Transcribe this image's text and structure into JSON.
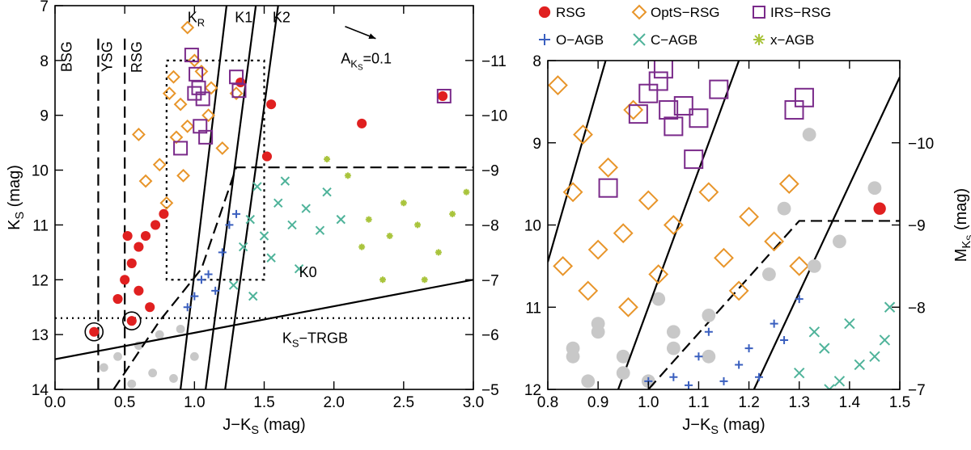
{
  "colors": {
    "rsg": "#e02020",
    "opts": "#e8952a",
    "irs": "#7a2a8a",
    "oagb": "#3a5fbf",
    "cagb": "#4fb39a",
    "xagb": "#a9c43c",
    "grey": "#c8c8c8",
    "dark": "#000000"
  },
  "chart_data": [
    {
      "panel": "left",
      "type": "scatter",
      "xlabel": "J−K",
      "xlabel_sub": "S",
      "xlabel_unit": " (mag)",
      "ylabel": "K",
      "ylabel_sub": "S",
      "ylabel_unit": " (mag)",
      "xlim": [
        0.0,
        3.0
      ],
      "ylim": [
        14,
        7
      ],
      "x_ticks": [
        "0.0",
        "0.5",
        "1.0",
        "1.5",
        "2.0",
        "2.5",
        "3.0"
      ],
      "x_tick_values": [
        0.0,
        0.5,
        1.0,
        1.5,
        2.0,
        2.5,
        3.0
      ],
      "y_ticks": [
        "7",
        "8",
        "9",
        "10",
        "11",
        "12",
        "13",
        "14"
      ],
      "y_tick_values": [
        7,
        8,
        9,
        10,
        11,
        12,
        13,
        14
      ],
      "right_axis_ticks": [
        "−11",
        "−10",
        "−9",
        "−8",
        "−7",
        "−6",
        "−5"
      ],
      "right_axis_values": [
        8.0,
        9.0,
        10.0,
        11.0,
        12.0,
        13.0,
        14.0
      ],
      "region_labels": [
        {
          "text": "BSG",
          "x": 0.12,
          "y": 7.65,
          "rotate": true
        },
        {
          "text": "YSG",
          "x": 0.41,
          "y": 7.65,
          "rotate": true
        },
        {
          "text": "RSG",
          "x": 0.62,
          "y": 7.65,
          "rotate": true
        },
        {
          "text": "K",
          "sub": "R",
          "x": 0.95,
          "y": 7.3
        },
        {
          "text": "K1",
          "x": 1.29,
          "y": 7.3
        },
        {
          "text": "K2",
          "x": 1.56,
          "y": 7.3
        },
        {
          "text": "K0",
          "x": 1.75,
          "y": 11.95
        },
        {
          "text": "K",
          "sub": "S",
          "tail": "−TRGB",
          "x": 1.63,
          "y": 13.15
        }
      ],
      "extinction_label": {
        "text": "A",
        "sub": "K",
        "subsub": "S",
        "tail": "=0.1",
        "x": 2.05,
        "y": 8.05
      },
      "extinction_arrow": {
        "from": [
          2.08,
          7.38
        ],
        "to": [
          2.3,
          7.6
        ]
      },
      "lines": {
        "KR": [
          [
            0.9,
            14.0
          ],
          [
            1.23,
            7.0
          ]
        ],
        "K1": [
          [
            1.08,
            14.0
          ],
          [
            1.44,
            7.0
          ]
        ],
        "K2": [
          [
            1.22,
            14.0
          ],
          [
            1.6,
            7.0
          ]
        ],
        "K0": [
          [
            0.0,
            13.45
          ],
          [
            3.0,
            12.0
          ]
        ],
        "dash_bsg": [
          [
            0.31,
            7.6
          ],
          [
            0.31,
            14.0
          ]
        ],
        "dash_ysg": [
          [
            0.5,
            7.6
          ],
          [
            0.5,
            14.0
          ]
        ],
        "dash_agb": [
          [
            0.42,
            14.0
          ],
          [
            0.75,
            12.75
          ],
          [
            1.05,
            11.8
          ],
          [
            1.3,
            9.95
          ],
          [
            3.0,
            9.95
          ]
        ],
        "trgb_dotted": [
          [
            0.0,
            12.7
          ],
          [
            3.0,
            12.7
          ]
        ],
        "box_dotted": [
          [
            0.8,
            8.0
          ],
          [
            1.5,
            8.0
          ],
          [
            1.5,
            12.0
          ],
          [
            0.8,
            12.0
          ],
          [
            0.8,
            8.0
          ]
        ]
      },
      "rsg_points": [
        [
          2.78,
          8.65
        ],
        [
          2.2,
          9.15
        ],
        [
          1.55,
          8.8
        ],
        [
          1.52,
          9.75
        ],
        [
          1.33,
          8.4
        ],
        [
          0.28,
          12.95
        ],
        [
          0.55,
          12.75
        ],
        [
          0.45,
          12.35
        ],
        [
          0.5,
          12.0
        ],
        [
          0.55,
          11.7
        ],
        [
          0.6,
          11.4
        ],
        [
          0.65,
          11.2
        ],
        [
          0.72,
          11.0
        ],
        [
          0.78,
          10.8
        ],
        [
          0.52,
          11.2
        ],
        [
          0.6,
          12.2
        ],
        [
          0.68,
          12.5
        ]
      ],
      "opts_points": [
        [
          0.85,
          8.3
        ],
        [
          0.95,
          7.4
        ],
        [
          1.0,
          8.0
        ],
        [
          0.82,
          8.6
        ],
        [
          0.9,
          8.8
        ],
        [
          1.05,
          8.2
        ],
        [
          1.12,
          8.5
        ],
        [
          0.87,
          9.4
        ],
        [
          0.6,
          9.35
        ],
        [
          0.75,
          9.9
        ],
        [
          0.65,
          10.2
        ],
        [
          0.8,
          10.6
        ],
        [
          0.92,
          10.1
        ],
        [
          1.2,
          9.6
        ],
        [
          1.1,
          9.0
        ],
        [
          0.95,
          9.2
        ],
        [
          1.3,
          8.6
        ]
      ],
      "irs_points": [
        [
          0.98,
          7.9
        ],
        [
          1.01,
          8.25
        ],
        [
          1.03,
          8.5
        ],
        [
          1.06,
          8.7
        ],
        [
          1.0,
          8.6
        ],
        [
          1.04,
          9.2
        ],
        [
          1.08,
          9.4
        ],
        [
          0.9,
          9.6
        ],
        [
          1.32,
          8.55
        ],
        [
          1.3,
          8.3
        ],
        [
          2.79,
          8.65
        ]
      ],
      "oagb_points": [
        [
          1.0,
          12.3
        ],
        [
          1.1,
          11.9
        ],
        [
          1.2,
          11.5
        ],
        [
          1.25,
          11.0
        ],
        [
          1.05,
          12.0
        ],
        [
          0.95,
          12.5
        ],
        [
          1.15,
          12.2
        ],
        [
          1.3,
          10.8
        ]
      ],
      "cagb_points": [
        [
          1.4,
          10.9
        ],
        [
          1.5,
          11.2
        ],
        [
          1.6,
          10.6
        ],
        [
          1.7,
          11.0
        ],
        [
          1.8,
          10.7
        ],
        [
          1.55,
          11.6
        ],
        [
          1.45,
          10.3
        ],
        [
          1.35,
          11.4
        ],
        [
          1.9,
          11.1
        ],
        [
          1.65,
          10.2
        ],
        [
          1.75,
          11.8
        ],
        [
          1.28,
          12.1
        ],
        [
          1.42,
          12.3
        ],
        [
          1.95,
          10.4
        ],
        [
          2.05,
          10.9
        ]
      ],
      "xagb_points": [
        [
          2.1,
          10.1
        ],
        [
          2.25,
          10.9
        ],
        [
          2.4,
          11.2
        ],
        [
          2.5,
          10.6
        ],
        [
          2.6,
          11.0
        ],
        [
          2.75,
          11.5
        ],
        [
          2.85,
          10.8
        ],
        [
          2.95,
          10.4
        ],
        [
          2.35,
          12.0
        ],
        [
          2.2,
          11.4
        ],
        [
          1.95,
          9.8
        ],
        [
          2.65,
          12.0
        ]
      ]
    },
    {
      "panel": "right",
      "type": "scatter",
      "xlabel": "J−K",
      "xlabel_sub": "S",
      "xlabel_unit": " (mag)",
      "ylabel": "M",
      "ylabel_sub": "K",
      "ylabel_subsub": "S",
      "ylabel_unit": " (mag)",
      "xlim": [
        0.8,
        1.5
      ],
      "ylim": [
        12,
        8
      ],
      "x_ticks": [
        "0.8",
        "0.9",
        "1.0",
        "1.1",
        "1.2",
        "1.3",
        "1.4",
        "1.5"
      ],
      "x_tick_values": [
        0.8,
        0.9,
        1.0,
        1.1,
        1.2,
        1.3,
        1.4,
        1.5
      ],
      "y_ticks": [
        "8",
        "9",
        "10",
        "11",
        "12"
      ],
      "y_tick_values": [
        8,
        9,
        10,
        11,
        12
      ],
      "right_axis_ticks": [
        "−10",
        "−9",
        "−8",
        "−7"
      ],
      "right_axis_values": [
        9.0,
        10.0,
        11.0,
        12.0
      ],
      "lines": {
        "KR": [
          [
            0.8,
            10.45
          ],
          [
            0.962,
            7.0
          ]
        ],
        "K1": [
          [
            0.94,
            12.0
          ],
          [
            1.24,
            7.0
          ]
        ],
        "K2": [
          [
            1.21,
            12.0
          ],
          [
            1.5,
            8.2
          ]
        ],
        "dash_agb": [
          [
            1.0,
            12.0
          ],
          [
            1.3,
            9.95
          ],
          [
            1.5,
            9.95
          ]
        ]
      },
      "opts_points": [
        [
          0.82,
          8.3
        ],
        [
          0.87,
          8.9
        ],
        [
          0.92,
          9.3
        ],
        [
          0.97,
          8.6
        ],
        [
          1.0,
          9.7
        ],
        [
          0.85,
          9.6
        ],
        [
          0.9,
          10.3
        ],
        [
          0.95,
          10.1
        ],
        [
          0.88,
          10.8
        ],
        [
          1.05,
          10.0
        ],
        [
          1.12,
          9.6
        ],
        [
          1.15,
          10.4
        ],
        [
          1.2,
          9.9
        ],
        [
          1.25,
          10.2
        ],
        [
          1.3,
          10.5
        ],
        [
          0.96,
          11.0
        ],
        [
          1.02,
          10.6
        ],
        [
          1.18,
          10.8
        ],
        [
          0.83,
          10.5
        ],
        [
          1.28,
          9.5
        ]
      ],
      "irs_points": [
        [
          0.92,
          9.55
        ],
        [
          0.98,
          8.65
        ],
        [
          1.0,
          8.4
        ],
        [
          1.02,
          8.25
        ],
        [
          1.04,
          8.6
        ],
        [
          1.05,
          8.8
        ],
        [
          1.07,
          8.55
        ],
        [
          1.03,
          8.1
        ],
        [
          1.09,
          9.2
        ],
        [
          1.1,
          8.7
        ],
        [
          1.14,
          8.35
        ],
        [
          1.29,
          8.6
        ],
        [
          1.31,
          8.45
        ]
      ],
      "rsg_points": [
        [
          1.46,
          9.8
        ]
      ],
      "grey_points": [
        [
          1.32,
          8.9
        ],
        [
          1.27,
          9.8
        ],
        [
          1.33,
          10.5
        ],
        [
          1.45,
          9.55
        ],
        [
          1.38,
          10.2
        ],
        [
          1.24,
          10.6
        ],
        [
          1.12,
          11.1
        ],
        [
          1.05,
          11.5
        ],
        [
          0.95,
          11.8
        ],
        [
          0.85,
          11.6
        ],
        [
          0.9,
          11.3
        ]
      ],
      "oagb_points": [
        [
          1.05,
          11.85
        ],
        [
          1.1,
          11.6
        ],
        [
          1.15,
          11.9
        ],
        [
          1.2,
          11.5
        ],
        [
          1.25,
          11.2
        ],
        [
          1.18,
          11.7
        ],
        [
          1.08,
          11.95
        ],
        [
          1.22,
          11.85
        ],
        [
          1.3,
          10.9
        ],
        [
          1.27,
          11.4
        ],
        [
          1.12,
          11.3
        ],
        [
          1.0,
          11.9
        ]
      ],
      "cagb_points": [
        [
          1.3,
          11.8
        ],
        [
          1.35,
          11.5
        ],
        [
          1.4,
          11.2
        ],
        [
          1.45,
          11.6
        ],
        [
          1.48,
          11.0
        ],
        [
          1.38,
          11.9
        ],
        [
          1.42,
          11.7
        ],
        [
          1.33,
          11.3
        ],
        [
          1.47,
          11.4
        ],
        [
          1.36,
          12.0
        ]
      ]
    }
  ],
  "legend": {
    "row1": [
      {
        "marker": "rsg",
        "label": "RSG"
      },
      {
        "marker": "opts",
        "label": "OptS−RSG"
      },
      {
        "marker": "irs",
        "label": "IRS−RSG"
      }
    ],
    "row2": [
      {
        "marker": "oagb",
        "label": "O−AGB"
      },
      {
        "marker": "cagb",
        "label": "C−AGB"
      },
      {
        "marker": "xagb",
        "label": "x−AGB"
      }
    ]
  }
}
